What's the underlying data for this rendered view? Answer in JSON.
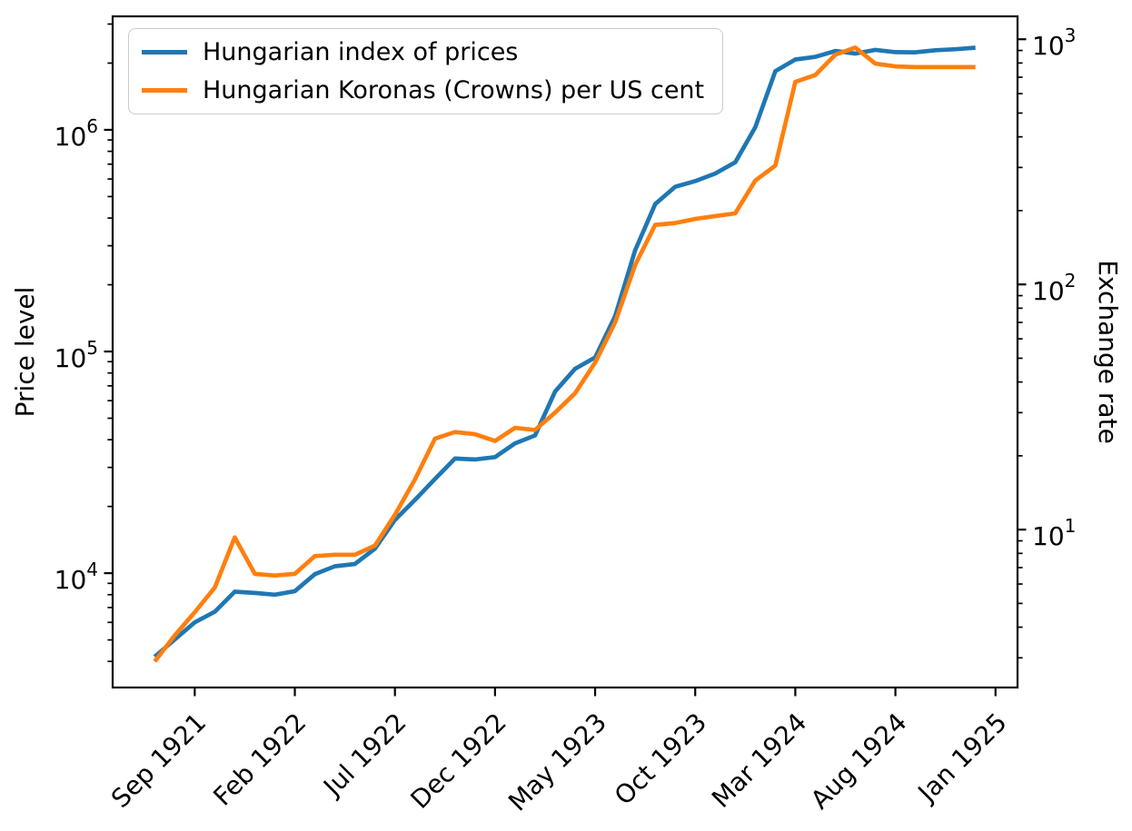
{
  "figure": {
    "background": "#ffffff"
  },
  "chart_data": {
    "type": "line",
    "title": "",
    "ylabel_left": "Price level",
    "ylabel_right": "Exchange rate",
    "xlabel": "",
    "yscale": "log",
    "grid": false,
    "legend_position": "upper left",
    "months": [
      "Jul 1921",
      "Aug 1921",
      "Sep 1921",
      "Oct 1921",
      "Nov 1921",
      "Dec 1921",
      "Jan 1922",
      "Feb 1922",
      "Mar 1922",
      "Apr 1922",
      "May 1922",
      "Jun 1922",
      "Jul 1922",
      "Aug 1922",
      "Sep 1922",
      "Oct 1922",
      "Nov 1922",
      "Dec 1922",
      "Jan 1923",
      "Feb 1923",
      "Mar 1923",
      "Apr 1923",
      "May 1923",
      "Jun 1923",
      "Jul 1923",
      "Aug 1923",
      "Sep 1923",
      "Oct 1923",
      "Nov 1923",
      "Dec 1923",
      "Jan 1924",
      "Feb 1924",
      "Mar 1924",
      "Apr 1924",
      "May 1924",
      "Jun 1924",
      "Jul 1924",
      "Aug 1924",
      "Sep 1924",
      "Oct 1924",
      "Nov 1924",
      "Dec 1924"
    ],
    "x_tick_labels": [
      "Sep 1921",
      "Feb 1922",
      "Jul 1922",
      "Dec 1922",
      "May 1923",
      "Oct 1923",
      "Mar 1924",
      "Aug 1924",
      "Jan 1925"
    ],
    "x_tick_month_indices": [
      2,
      7,
      12,
      17,
      22,
      27,
      32,
      37,
      42
    ],
    "xlim_months": [
      -2.1,
      43.1
    ],
    "ylim_left": [
      3050,
      3250000
    ],
    "ylim_right": [
      2.27,
      1240
    ],
    "y_ticks_left": [
      {
        "value": 10000,
        "base": "10",
        "exp": "4"
      },
      {
        "value": 100000,
        "base": "10",
        "exp": "5"
      },
      {
        "value": 1000000,
        "base": "10",
        "exp": "6"
      }
    ],
    "y_ticks_right": [
      {
        "value": 10,
        "base": "10",
        "exp": "1"
      },
      {
        "value": 100,
        "base": "10",
        "exp": "2"
      },
      {
        "value": 1000,
        "base": "10",
        "exp": "3"
      }
    ],
    "minor_ticks": true,
    "series": [
      {
        "name": "Hungarian index of prices",
        "color": "#1f77b4",
        "axis": "left",
        "values": [
          4200,
          5025,
          6000,
          6700,
          8250,
          8140,
          8000,
          8300,
          9900,
          10750,
          11000,
          12900,
          17400,
          21400,
          26600,
          32900,
          32600,
          33400,
          38500,
          41800,
          66000,
          83500,
          94000,
          144500,
          286000,
          462500,
          554000,
          587000,
          635000,
          714000,
          1026000,
          1839100,
          2076700,
          2134600,
          2269600,
          2207800,
          2294500,
          2242000,
          2236600,
          2285200,
          2309500,
          2346600
        ]
      },
      {
        "name": "Hungarian Koronas (Crowns) per US cent",
        "color": "#ff7f0e",
        "axis": "right",
        "values": [
          2.9,
          3.7,
          4.6,
          5.8,
          9.3,
          6.6,
          6.5,
          6.6,
          7.8,
          7.9,
          7.9,
          8.6,
          11.5,
          16,
          23.5,
          25,
          24.5,
          23,
          26,
          25.5,
          30,
          36,
          48,
          70,
          120,
          175,
          178,
          185,
          190,
          195,
          265,
          305,
          670,
          715,
          865,
          925,
          795,
          775,
          770,
          770,
          770,
          770
        ]
      }
    ]
  }
}
